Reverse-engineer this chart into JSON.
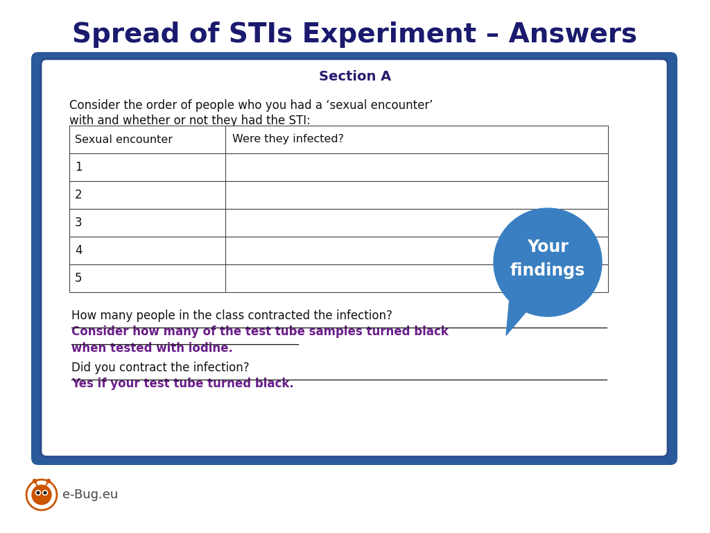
{
  "title": "Spread of STIs Experiment – Answers",
  "title_color": "#1a1a6e",
  "title_fontsize": 28,
  "bg_color": "#ffffff",
  "outer_box_edge_color": "#3a7fc1",
  "outer_box_fill_color": "#2a5a9a",
  "inner_box_edge_color": "#2a4a8a",
  "section_title": "Section A",
  "section_title_color": "#2a1a6e",
  "intro_line1": "Consider the order of people who you had a ‘sexual encounter’",
  "intro_line2": "with and whether or not they had the STI:",
  "table_header_col1": "Sexual encounter",
  "table_header_col2": "Were they infected?",
  "table_rows": [
    "1",
    "2",
    "3",
    "4",
    "5"
  ],
  "bubble_text": "Your\nfindings",
  "bubble_color": "#3a7fc1",
  "bubble_text_color": "#ffffff",
  "q1_text": "How many people in the class contracted the infection?",
  "q1_answer_line1": "Consider how many of the test tube samples turned black",
  "q1_answer_line2": "when tested with iodine.",
  "q2_text": "Did you contract the infection?",
  "q2_answer": "Yes if your test tube turned black.",
  "answer_color": "#6a1d8a",
  "footer_text": "e-Bug.eu",
  "footer_color": "#444444"
}
